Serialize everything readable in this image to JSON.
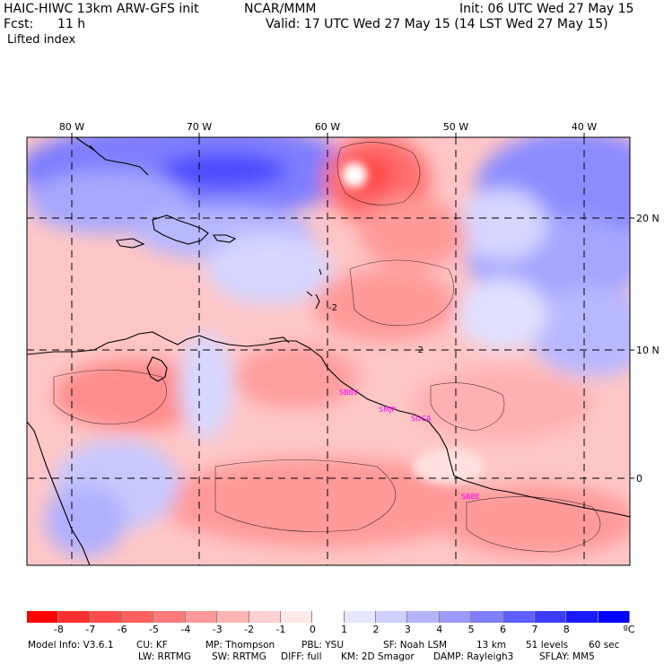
{
  "header": {
    "title_left": "HAIC-HIWC 13km ARW-GFS init",
    "org": "NCAR/MMM",
    "init": "Init: 06 UTC Wed 27 May 15",
    "fcst_label": "Fcst:",
    "fcst_value": "11 h",
    "valid": "Valid: 17 UTC Wed 27 May 15 (14 LST Wed 27 May 15)",
    "field": "Lifted index"
  },
  "map": {
    "lon_labels": [
      "80 W",
      "70 W",
      "60 W",
      "50 W",
      "40 W"
    ],
    "lat_labels": [
      "20 N",
      "10 N",
      "0"
    ],
    "contour_labels": [
      "-2",
      "-2"
    ],
    "stations": [
      "SBBV",
      "SMJP",
      "SOCA",
      "SBBE"
    ]
  },
  "colorbar": {
    "ticks": [
      "-8",
      "-7",
      "-6",
      "-5",
      "-4",
      "-3",
      "-2",
      "-1",
      "0",
      "1",
      "2",
      "3",
      "4",
      "5",
      "6",
      "7",
      "8"
    ],
    "unit": "ºC",
    "colors": [
      "#ff0000",
      "#ff2f2f",
      "#ff4b4b",
      "#ff6060",
      "#ff7a7a",
      "#ff9898",
      "#ffb4b4",
      "#ffd0d0",
      "#ffe8e8",
      "#ffffff",
      "#e6e6ff",
      "#cfcfff",
      "#b4b4ff",
      "#9a9aff",
      "#7e7eff",
      "#6060ff",
      "#3d3dff",
      "#1a1aff",
      "#0000ff"
    ]
  },
  "footer": {
    "line1": [
      "Model Info: V3.6.1",
      "CU: KF",
      "MP: Thompson",
      "PBL: YSU",
      "SF: Noah LSM",
      "13 km",
      "51 levels",
      "60 sec"
    ],
    "line2": [
      "LW: RRTMG",
      "SW: RRTMG",
      "DIFF: full",
      "KM: 2D Smagor",
      "DAMP: Rayleigh3",
      "SFLAY: MM5"
    ]
  }
}
